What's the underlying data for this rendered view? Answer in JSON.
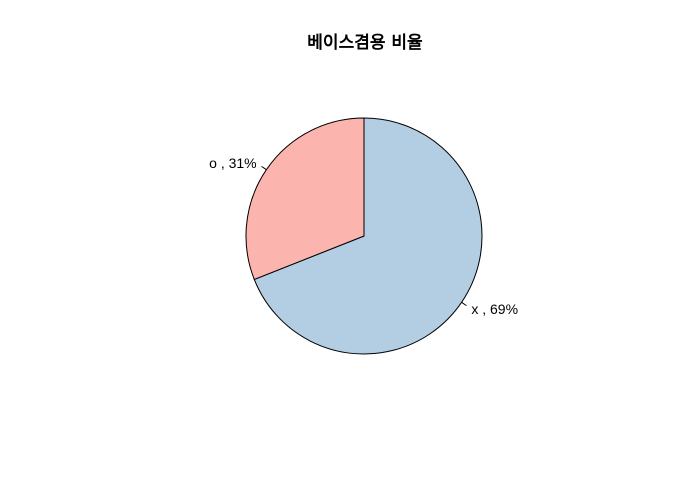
{
  "chart_data": {
    "type": "pie",
    "title": "베이스겸용 비율",
    "slices": [
      {
        "label": "x , 69%",
        "category": "x",
        "value": 69,
        "color": "#B3CDE3"
      },
      {
        "label": "o , 31%",
        "category": "o",
        "value": 31,
        "color": "#FBB4AE"
      }
    ],
    "start_angle_deg": 90,
    "direction": "clockwise"
  }
}
